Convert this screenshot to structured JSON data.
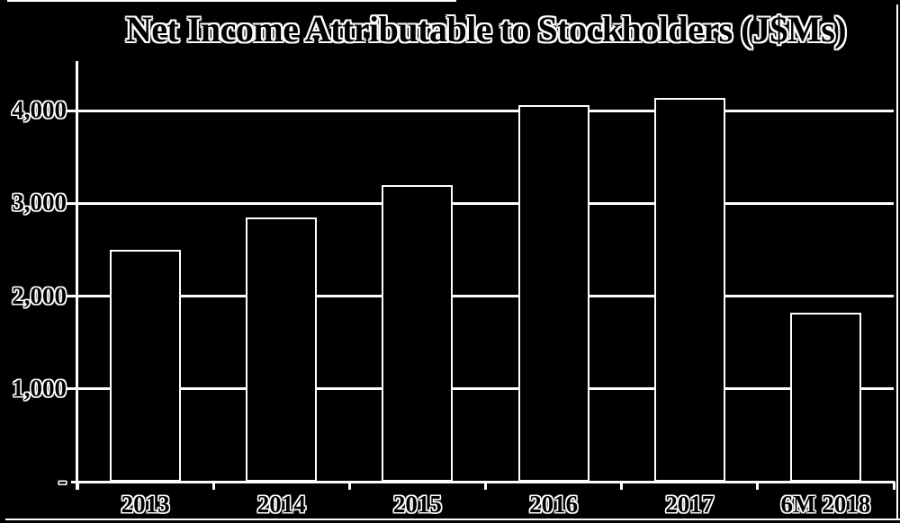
{
  "chart_data": {
    "type": "bar",
    "title": "Net Income Attributable to Stockholders (J$Ms)",
    "categories": [
      "2013",
      "2014",
      "2015",
      "2016",
      "2017",
      "6M 2018"
    ],
    "values": [
      2500,
      2850,
      3200,
      4060,
      4140,
      1820
    ],
    "xlabel": "",
    "ylabel": "",
    "ylim": [
      0,
      4500
    ],
    "ytick_interval": 1000,
    "ytick_labels": [
      "-",
      "1,000",
      "2,000",
      "3,000",
      "4,000"
    ],
    "grid": true,
    "legend_position": "none",
    "colors": {
      "background": "#000000",
      "bar_fill": "#000000",
      "bar_border": "#ffffff",
      "gridline": "#ffffff",
      "axis": "#ffffff",
      "text_fill": "#000000",
      "text_outline": "#ffffff"
    }
  }
}
